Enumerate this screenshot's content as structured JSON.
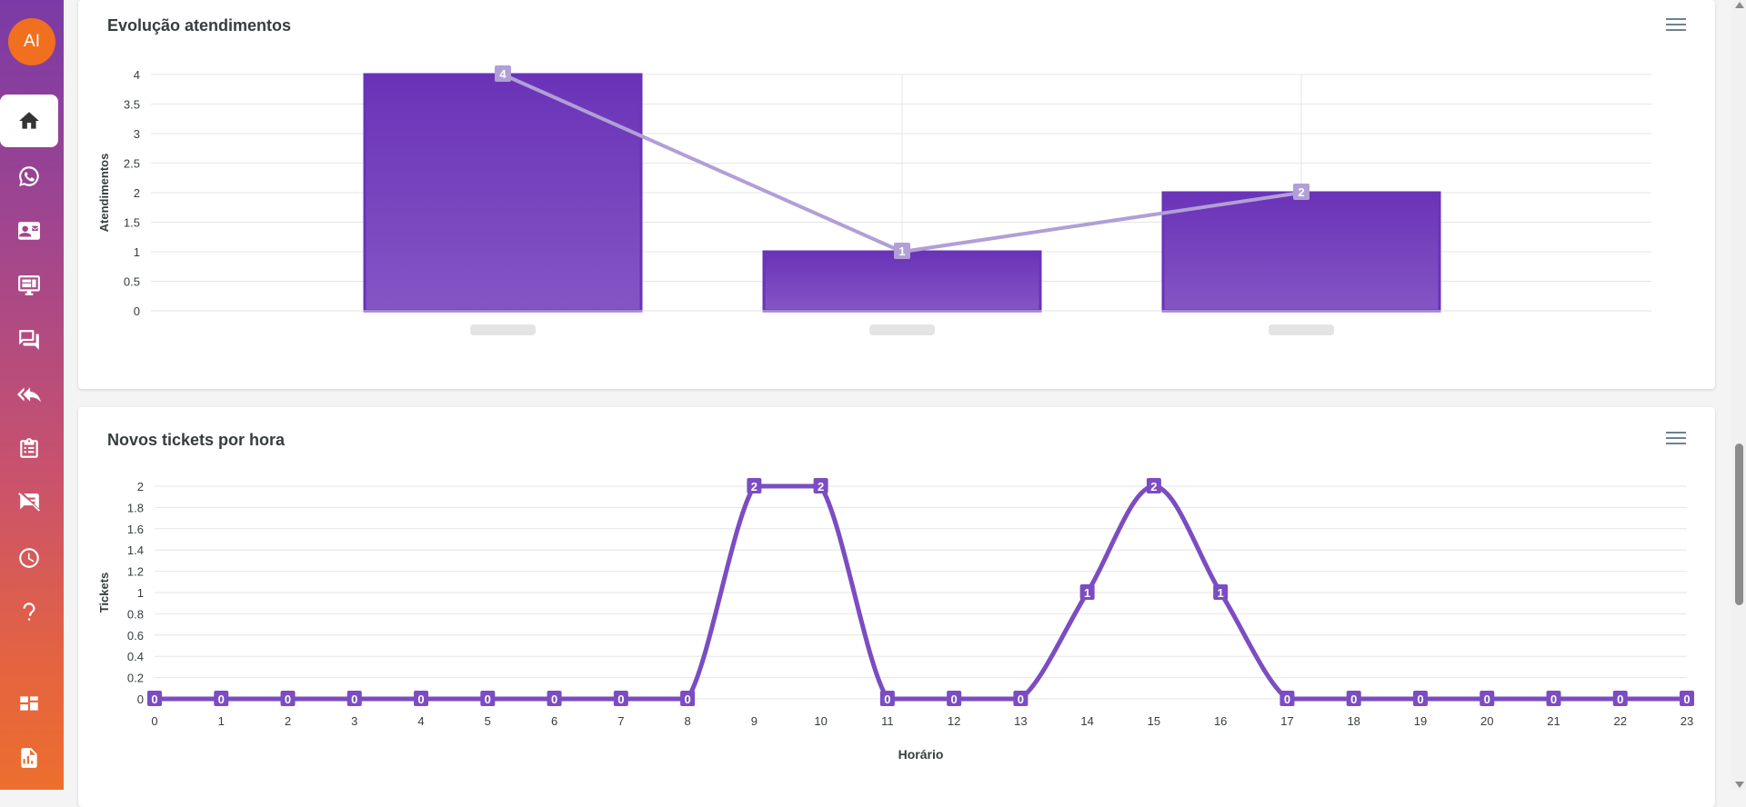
{
  "sidebar": {
    "avatar_initials": "AI",
    "items": [
      {
        "icon": "home-icon",
        "active": true
      },
      {
        "icon": "whatsapp-icon"
      },
      {
        "icon": "contact-card-icon"
      },
      {
        "icon": "monitor-icon"
      },
      {
        "icon": "chat-icon"
      },
      {
        "icon": "reply-all-icon"
      },
      {
        "icon": "clipboard-icon"
      },
      {
        "icon": "message-off-icon"
      },
      {
        "icon": "clock-icon"
      },
      {
        "icon": "help-icon"
      },
      {
        "icon": "dashboard-icon"
      },
      {
        "icon": "report-icon"
      }
    ]
  },
  "colors": {
    "bar_top": "#6a33b8",
    "bar_bottom": "#8555c4",
    "line_light": "#b19fd6",
    "series": "#7b4cc2"
  },
  "cards": [
    {
      "title": "Evolução atendimentos"
    },
    {
      "title": "Novos tickets por hora"
    }
  ],
  "chart_data": [
    {
      "type": "bar",
      "title": "Evolução atendimentos",
      "ylabel": "Atendimentos",
      "xlabel": "",
      "categories": [
        "",
        "",
        ""
      ],
      "categories_note_hidden": true,
      "series": [
        {
          "values": [
            4,
            1,
            2
          ]
        }
      ],
      "overlay_line_values": [
        4,
        1,
        2
      ],
      "yticks": [
        "0",
        "0.5",
        "1",
        "1.5",
        "2",
        "2.5",
        "3",
        "3.5",
        "4"
      ],
      "ylim": [
        0,
        4
      ],
      "grid": true
    },
    {
      "type": "line",
      "title": "Novos tickets por hora",
      "xlabel": "Horário",
      "ylabel": "Tickets",
      "x": [
        0,
        1,
        2,
        3,
        4,
        5,
        6,
        7,
        8,
        9,
        10,
        11,
        12,
        13,
        14,
        15,
        16,
        17,
        18,
        19,
        20,
        21,
        22,
        23
      ],
      "series": [
        {
          "values": [
            0,
            0,
            0,
            0,
            0,
            0,
            0,
            0,
            0,
            2,
            2,
            0,
            0,
            0,
            1,
            2,
            1,
            0,
            0,
            0,
            0,
            0,
            0,
            0
          ]
        }
      ],
      "yticks": [
        "0",
        "0.2",
        "0.4",
        "0.6",
        "0.8",
        "1",
        "1.2",
        "1.4",
        "1.6",
        "1.8",
        "2"
      ],
      "ylim": [
        0,
        2
      ],
      "grid": true
    }
  ]
}
